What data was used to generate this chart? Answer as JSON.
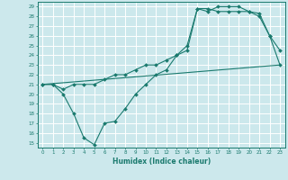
{
  "title": "",
  "xlabel": "Humidex (Indice chaleur)",
  "bg_color": "#cce8ec",
  "grid_color": "#ffffff",
  "line_color": "#1a7a6e",
  "xlim": [
    -0.5,
    23.5
  ],
  "ylim": [
    14.5,
    29.5
  ],
  "xticks": [
    0,
    1,
    2,
    3,
    4,
    5,
    6,
    7,
    8,
    9,
    10,
    11,
    12,
    13,
    14,
    15,
    16,
    17,
    18,
    19,
    20,
    21,
    22,
    23
  ],
  "yticks": [
    15,
    16,
    17,
    18,
    19,
    20,
    21,
    22,
    23,
    24,
    25,
    26,
    27,
    28,
    29
  ],
  "line1_x": [
    0,
    1,
    2,
    3,
    4,
    5,
    6,
    7,
    8,
    9,
    10,
    11,
    12,
    13,
    14,
    15,
    16,
    17,
    18,
    19,
    20,
    21,
    22,
    23
  ],
  "line1_y": [
    21.0,
    21.0,
    20.0,
    18.0,
    15.5,
    14.8,
    17.0,
    17.2,
    18.5,
    20.0,
    21.0,
    22.0,
    22.5,
    24.0,
    25.0,
    28.8,
    28.8,
    28.5,
    28.5,
    28.5,
    28.5,
    28.3,
    26.0,
    23.0
  ],
  "line2_x": [
    0,
    1,
    2,
    3,
    4,
    5,
    6,
    7,
    8,
    9,
    10,
    11,
    12,
    13,
    14,
    15,
    16,
    17,
    18,
    19,
    20,
    21,
    22,
    23
  ],
  "line2_y": [
    21.0,
    21.0,
    20.5,
    21.0,
    21.0,
    21.0,
    21.5,
    22.0,
    22.0,
    22.5,
    23.0,
    23.0,
    23.5,
    24.0,
    24.5,
    28.8,
    28.5,
    29.0,
    29.0,
    29.0,
    28.5,
    28.0,
    26.0,
    24.5
  ],
  "line3_x": [
    0,
    23
  ],
  "line3_y": [
    21.0,
    23.0
  ]
}
